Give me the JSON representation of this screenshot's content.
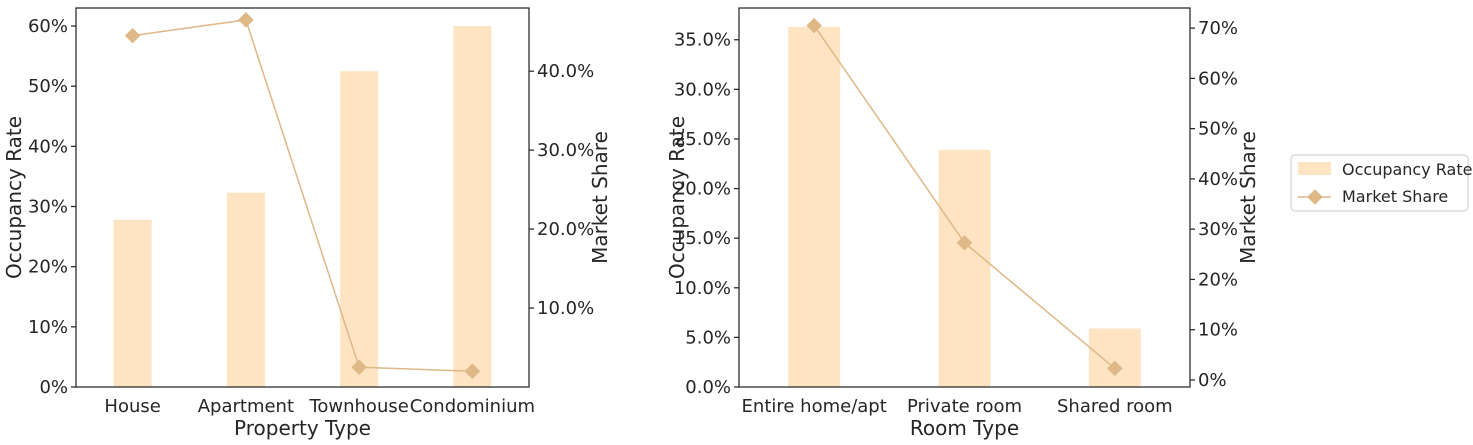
{
  "colors": {
    "bar": "#ffe4c4",
    "line": "#deb887",
    "axis": "#262626"
  },
  "legend": {
    "items": [
      "Occupancy Rate",
      "Market Share"
    ],
    "placement": "right"
  },
  "chart_data": [
    {
      "type": "bar",
      "categories": [
        "House",
        "Apartment",
        "Townhouse",
        "Condominium"
      ],
      "xlabel": "Property Type",
      "ylabel": "Occupancy Rate",
      "y2label": "Market Share",
      "ylim": [
        0,
        0.63
      ],
      "y2lim": [
        0.0,
        0.48
      ],
      "yticks": [
        0,
        0.1,
        0.2,
        0.3,
        0.4,
        0.5,
        0.6
      ],
      "ytick_labels": [
        "0%",
        "10%",
        "20%",
        "30%",
        "40%",
        "50%",
        "60%"
      ],
      "y2ticks": [
        0.1,
        0.2,
        0.3,
        0.4
      ],
      "y2tick_labels": [
        "10.0%",
        "20.0%",
        "30.0%",
        "40.0%"
      ],
      "series": [
        {
          "name": "Occupancy Rate",
          "kind": "bar",
          "axis": "left",
          "values": [
            0.278,
            0.323,
            0.525,
            0.6
          ]
        },
        {
          "name": "Market Share",
          "kind": "line",
          "axis": "right",
          "values": [
            0.445,
            0.465,
            0.025,
            0.02
          ]
        }
      ],
      "grid": false
    },
    {
      "type": "bar",
      "categories": [
        "Entire home/apt",
        "Private room",
        "Shared room"
      ],
      "xlabel": "Room Type",
      "ylabel": "Occupancy Rate",
      "y2label": "Market Share",
      "ylim": [
        0,
        0.382
      ],
      "y2lim": [
        -0.014,
        0.74
      ],
      "yticks": [
        0,
        0.05,
        0.1,
        0.15,
        0.2,
        0.25,
        0.3,
        0.35
      ],
      "ytick_labels": [
        "0.0%",
        "5.0%",
        "10.0%",
        "15.0%",
        "20.0%",
        "25.0%",
        "30.0%",
        "35.0%"
      ],
      "y2ticks": [
        0,
        0.1,
        0.2,
        0.3,
        0.4,
        0.5,
        0.6,
        0.7
      ],
      "y2tick_labels": [
        "0%",
        "10%",
        "20%",
        "30%",
        "40%",
        "50%",
        "60%",
        "70%"
      ],
      "series": [
        {
          "name": "Occupancy Rate",
          "kind": "bar",
          "axis": "left",
          "values": [
            0.363,
            0.239,
            0.059
          ]
        },
        {
          "name": "Market Share",
          "kind": "line",
          "axis": "right",
          "values": [
            0.705,
            0.273,
            0.023
          ]
        }
      ],
      "grid": false
    }
  ]
}
